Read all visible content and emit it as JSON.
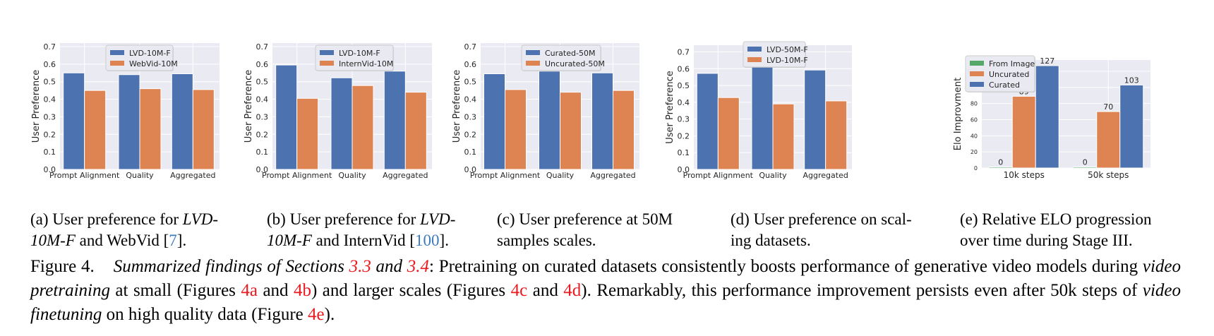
{
  "colors": {
    "blue": "#4c72b0",
    "orange": "#dd8452",
    "green": "#55a868",
    "plot_bg": "#eaeaf2",
    "grid": "#ffffff",
    "cite": "#3a7bbf",
    "ref": "#e8191f"
  },
  "chart_data": [
    {
      "id": "a",
      "type": "bar",
      "title": "",
      "xlabel": "",
      "ylabel": "User Preference",
      "categories": [
        "Prompt Alignment",
        "Quality",
        "Aggregated"
      ],
      "series": [
        {
          "name": "LVD-10M-F",
          "color": "blue",
          "values": [
            0.55,
            0.54,
            0.545
          ]
        },
        {
          "name": "WebVid-10M",
          "color": "orange",
          "values": [
            0.45,
            0.46,
            0.455
          ]
        }
      ],
      "ylim": [
        0,
        0.72
      ],
      "yticks": [
        "0.0",
        "0.1",
        "0.2",
        "0.3",
        "0.4",
        "0.5",
        "0.6",
        "0.7"
      ],
      "grid": true,
      "legend": "upper-center"
    },
    {
      "id": "b",
      "type": "bar",
      "title": "",
      "xlabel": "",
      "ylabel": "User Preference",
      "categories": [
        "Prompt Alignment",
        "Quality",
        "Aggregated"
      ],
      "series": [
        {
          "name": "LVD-10M-F",
          "color": "blue",
          "values": [
            0.595,
            0.522,
            0.56
          ]
        },
        {
          "name": "InternVid-10M",
          "color": "orange",
          "values": [
            0.405,
            0.478,
            0.44
          ]
        }
      ],
      "ylim": [
        0,
        0.72
      ],
      "yticks": [
        "0.0",
        "0.1",
        "0.2",
        "0.3",
        "0.4",
        "0.5",
        "0.6",
        "0.7"
      ],
      "grid": true,
      "legend": "upper-right"
    },
    {
      "id": "c",
      "type": "bar",
      "title": "",
      "xlabel": "",
      "ylabel": "User Preference",
      "categories": [
        "Prompt Alignment",
        "Quality",
        "Aggregated"
      ],
      "series": [
        {
          "name": "Curated-50M",
          "color": "blue",
          "values": [
            0.545,
            0.56,
            0.55
          ]
        },
        {
          "name": "Uncurated-50M",
          "color": "orange",
          "values": [
            0.455,
            0.44,
            0.45
          ]
        }
      ],
      "ylim": [
        0,
        0.72
      ],
      "yticks": [
        "0.0",
        "0.1",
        "0.2",
        "0.3",
        "0.4",
        "0.5",
        "0.6",
        "0.7"
      ],
      "grid": true,
      "legend": "upper-right"
    },
    {
      "id": "d",
      "type": "bar",
      "title": "",
      "xlabel": "",
      "ylabel": "User Preference",
      "categories": [
        "Prompt Alignment",
        "Quality",
        "Aggregated"
      ],
      "series": [
        {
          "name": "LVD-50M-F",
          "color": "blue",
          "values": [
            0.572,
            0.61,
            0.592
          ]
        },
        {
          "name": "LVD-10M-F",
          "color": "orange",
          "values": [
            0.428,
            0.39,
            0.408
          ]
        }
      ],
      "ylim": [
        0,
        0.74
      ],
      "yticks": [
        "0.0",
        "0.1",
        "0.2",
        "0.3",
        "0.4",
        "0.5",
        "0.6",
        "0.7"
      ],
      "grid": true,
      "legend": "upper-right"
    },
    {
      "id": "e",
      "type": "bar",
      "title": "",
      "xlabel": "",
      "ylabel": "Elo Improvment",
      "categories": [
        "10k steps",
        "50k steps"
      ],
      "series": [
        {
          "name": "From Image",
          "color": "green",
          "values": [
            0,
            0
          ]
        },
        {
          "name": "Uncurated",
          "color": "orange",
          "values": [
            89,
            70
          ]
        },
        {
          "name": "Curated",
          "color": "blue",
          "values": [
            127,
            103
          ]
        }
      ],
      "data_labels": [
        [
          "0",
          "0"
        ],
        [
          "89",
          "70"
        ],
        [
          "127",
          "103"
        ]
      ],
      "ylim": [
        0,
        134
      ],
      "yticks": [
        "0",
        "20",
        "40",
        "60",
        "80",
        "100",
        "120"
      ],
      "grid": true,
      "legend": "upper-left"
    }
  ],
  "subcaptions": {
    "a": {
      "prefix": "(a)  User preference for ",
      "italic1": "LVD-",
      "italic2": "10M-F",
      "mid": " and WebVid [",
      "cite": "7",
      "end": "]."
    },
    "b": {
      "prefix": "(b)  User preference for ",
      "italic1": "LVD-",
      "italic2": "10M-F",
      "mid": " and InternVid [",
      "cite": "100",
      "end": "]."
    },
    "c": {
      "line1": "(c)   User preference at 50M",
      "line2": "samples scales."
    },
    "d": {
      "line1": "(d)  User preference on scal-",
      "line2": "ing datasets."
    },
    "e": {
      "line1": "(e)  Relative ELO progression",
      "line2": "over time during Stage III."
    }
  },
  "caption": {
    "label": "Figure 4.",
    "italic_intro": "Summarized findings of Sections ",
    "ref_33": "3.3",
    "and_italic": " and ",
    "ref_34": "3.4",
    "t1": ": Pretraining on curated datasets consistently boosts performance of generative video models during ",
    "italic_pretrain": "video pretraining",
    "t2": " at small (Figures ",
    "ref_4a": "4a",
    "t3": " and ",
    "ref_4b": "4b",
    "t4": ") and larger scales (Figures ",
    "ref_4c": "4c",
    "t5": " and ",
    "ref_4d": "4d",
    "t6": "). Remarkably, this performance improvement persists even after 50k steps of ",
    "italic_finetune": "video finetuning",
    "t7": " on high quality data (Figure ",
    "ref_4e": "4e",
    "t8": ")."
  }
}
